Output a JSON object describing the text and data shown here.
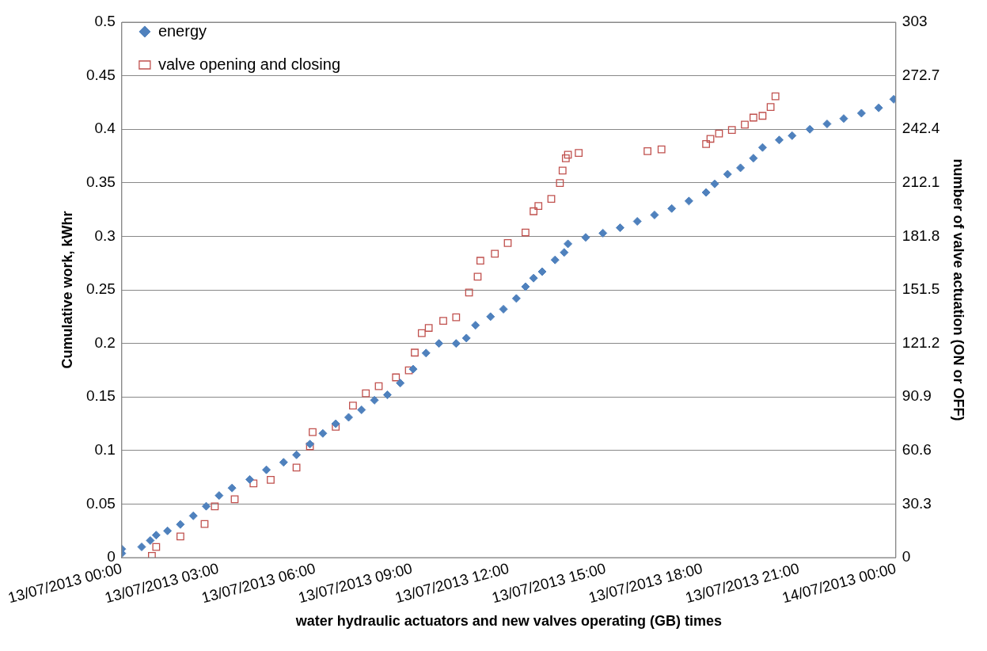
{
  "chart_data": {
    "type": "scatter",
    "xlabel": "water hydraulic actuators and new valves operating (GB) times",
    "ylabel": "Cumulative work, kWhr",
    "y2label": "number of valve actuation (ON or OFF)",
    "xlim": [
      "2013-07-13T00:00",
      "2013-07-14T00:00"
    ],
    "xticks": [
      {
        "value": "2013-07-13T00:00",
        "label": "13/07/2013 00:00"
      },
      {
        "value": "2013-07-13T03:00",
        "label": "13/07/2013 03:00"
      },
      {
        "value": "2013-07-13T06:00",
        "label": "13/07/2013 06:00"
      },
      {
        "value": "2013-07-13T09:00",
        "label": "13/07/2013 09:00"
      },
      {
        "value": "2013-07-13T12:00",
        "label": "13/07/2013 12:00"
      },
      {
        "value": "2013-07-13T15:00",
        "label": "13/07/2013 15:00"
      },
      {
        "value": "2013-07-13T18:00",
        "label": "13/07/2013 18:00"
      },
      {
        "value": "2013-07-13T21:00",
        "label": "13/07/2013 21:00"
      },
      {
        "value": "2013-07-14T00:00",
        "label": "14/07/2013 00:00"
      }
    ],
    "ylim": [
      0,
      0.5
    ],
    "yticks": [
      0,
      0.05,
      0.1,
      0.15,
      0.2,
      0.25,
      0.3,
      0.35,
      0.4,
      0.45,
      0.5
    ],
    "y2lim": [
      0,
      303
    ],
    "y2ticks": [
      0,
      30.3,
      60.6,
      90.9,
      121.2,
      151.5,
      181.8,
      212.1,
      242.4,
      272.7,
      303
    ],
    "grid": "y",
    "legend": "top left",
    "series": [
      {
        "name": "energy",
        "color": "#4f81bd",
        "marker": "diamond",
        "x": [
          "2013-07-13T00:00",
          "2013-07-13T00:00",
          "2013-07-13T00:37",
          "2013-07-13T00:53",
          "2013-07-13T01:04",
          "2013-07-13T01:25",
          "2013-07-13T01:49",
          "2013-07-13T02:13",
          "2013-07-13T02:37",
          "2013-07-13T03:01",
          "2013-07-13T03:25",
          "2013-07-13T03:58",
          "2013-07-13T04:29",
          "2013-07-13T05:01",
          "2013-07-13T05:25",
          "2013-07-13T05:50",
          "2013-07-13T06:14",
          "2013-07-13T06:38",
          "2013-07-13T07:02",
          "2013-07-13T07:26",
          "2013-07-13T07:50",
          "2013-07-13T08:14",
          "2013-07-13T08:38",
          "2013-07-13T09:02",
          "2013-07-13T09:26",
          "2013-07-13T09:50",
          "2013-07-13T10:22",
          "2013-07-13T10:41",
          "2013-07-13T10:58",
          "2013-07-13T11:26",
          "2013-07-13T11:50",
          "2013-07-13T12:14",
          "2013-07-13T12:31",
          "2013-07-13T12:46",
          "2013-07-13T13:02",
          "2013-07-13T13:26",
          "2013-07-13T13:43",
          "2013-07-13T13:50",
          "2013-07-13T14:23",
          "2013-07-13T14:55",
          "2013-07-13T15:27",
          "2013-07-13T15:59",
          "2013-07-13T16:31",
          "2013-07-13T17:03",
          "2013-07-13T17:35",
          "2013-07-13T18:07",
          "2013-07-13T18:23",
          "2013-07-13T18:47",
          "2013-07-13T19:11",
          "2013-07-13T19:35",
          "2013-07-13T19:52",
          "2013-07-13T20:23",
          "2013-07-13T20:47",
          "2013-07-13T21:20",
          "2013-07-13T21:52",
          "2013-07-13T22:23",
          "2013-07-13T22:56",
          "2013-07-13T23:28",
          "2013-07-13T23:56"
        ],
        "values": [
          0.008,
          0.004,
          0.01,
          0.016,
          0.021,
          0.025,
          0.031,
          0.039,
          0.048,
          0.058,
          0.065,
          0.073,
          0.082,
          0.089,
          0.096,
          0.106,
          0.116,
          0.125,
          0.131,
          0.138,
          0.147,
          0.152,
          0.163,
          0.176,
          0.191,
          0.2,
          0.2,
          0.205,
          0.217,
          0.225,
          0.232,
          0.242,
          0.253,
          0.261,
          0.267,
          0.278,
          0.285,
          0.293,
          0.299,
          0.303,
          0.308,
          0.314,
          0.32,
          0.326,
          0.333,
          0.341,
          0.349,
          0.358,
          0.364,
          0.373,
          0.383,
          0.39,
          0.394,
          0.4,
          0.405,
          0.41,
          0.415,
          0.42,
          0.428
        ]
      },
      {
        "name": "valve opening and closing",
        "color": "#c0504d",
        "marker": "square",
        "axis": "y2",
        "x": [
          "2013-07-13T00:56",
          "2013-07-13T01:04",
          "2013-07-13T01:49",
          "2013-07-13T02:34",
          "2013-07-13T02:53",
          "2013-07-13T03:30",
          "2013-07-13T04:05",
          "2013-07-13T04:37",
          "2013-07-13T05:25",
          "2013-07-13T05:50",
          "2013-07-13T05:55",
          "2013-07-13T06:38",
          "2013-07-13T07:10",
          "2013-07-13T07:34",
          "2013-07-13T07:58",
          "2013-07-13T08:30",
          "2013-07-13T08:54",
          "2013-07-13T09:05",
          "2013-07-13T09:18",
          "2013-07-13T09:31",
          "2013-07-13T09:58",
          "2013-07-13T10:22",
          "2013-07-13T10:46",
          "2013-07-13T11:02",
          "2013-07-13T11:07",
          "2013-07-13T11:34",
          "2013-07-13T11:58",
          "2013-07-13T12:31",
          "2013-07-13T12:46",
          "2013-07-13T12:55",
          "2013-07-13T13:19",
          "2013-07-13T13:35",
          "2013-07-13T13:40",
          "2013-07-13T13:46",
          "2013-07-13T13:50",
          "2013-07-13T14:10",
          "2013-07-13T16:18",
          "2013-07-13T16:44",
          "2013-07-13T18:07",
          "2013-07-13T18:15",
          "2013-07-13T18:31",
          "2013-07-13T18:55",
          "2013-07-13T19:19",
          "2013-07-13T19:35",
          "2013-07-13T19:52",
          "2013-07-13T20:07",
          "2013-07-13T20:16"
        ],
        "values": [
          1,
          6,
          12,
          19,
          29,
          33,
          42,
          44,
          51,
          63,
          71,
          74,
          86,
          93,
          97,
          102,
          106,
          116,
          127,
          130,
          134,
          136,
          150,
          159,
          168,
          172,
          178,
          184,
          196,
          199,
          203,
          212,
          219,
          226,
          228,
          229,
          230,
          231,
          234,
          237,
          240,
          242,
          245,
          249,
          250,
          255,
          261
        ]
      }
    ]
  }
}
